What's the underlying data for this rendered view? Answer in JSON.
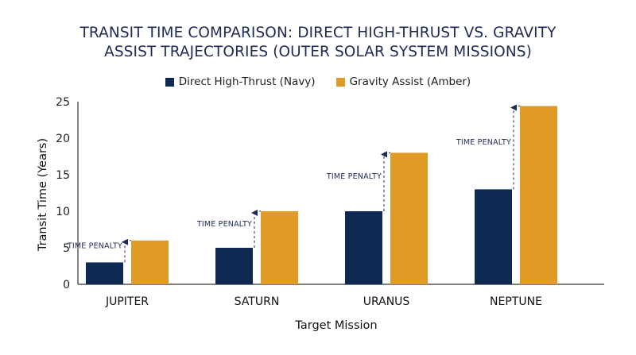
{
  "chart_data": {
    "type": "bar",
    "title_lines": [
      "TRANSIT TIME COMPARISON: DIRECT HIGH-THRUST VS. GRAVITY",
      "ASSIST TRAJECTORIES (OUTER SOLAR SYSTEM MISSIONS)"
    ],
    "categories": [
      "JUPITER",
      "SATURN",
      "URANUS",
      "NEPTUNE"
    ],
    "series": [
      {
        "name": "Direct High-Thrust (Navy)",
        "color": "#0f2a52",
        "values": [
          3,
          5,
          10,
          13
        ]
      },
      {
        "name": "Gravity Assist (Amber)",
        "color": "#e09a26",
        "values": [
          6,
          10,
          18,
          24.4
        ]
      }
    ],
    "xlabel": "Target Mission",
    "ylabel": "Transit Time (Years)",
    "ylim": [
      0,
      25
    ],
    "yticks": [
      0,
      5,
      10,
      15,
      20,
      25
    ],
    "grid": false,
    "legend_position": "top-center",
    "annotation_label": "TIME PENALTY"
  }
}
